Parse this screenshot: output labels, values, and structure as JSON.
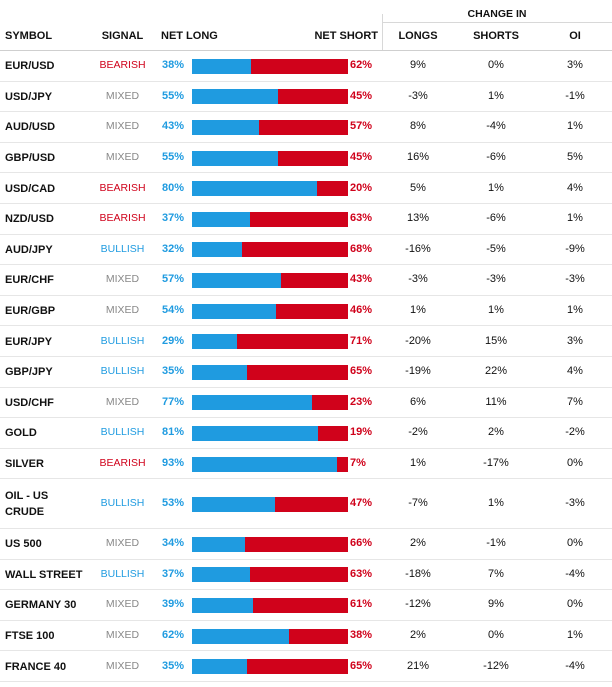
{
  "header": {
    "group_label": "CHANGE IN",
    "symbol": "SYMBOL",
    "signal": "SIGNAL",
    "net_long": "NET LONG",
    "net_short": "NET SHORT",
    "longs": "LONGS",
    "shorts": "SHORTS",
    "oi": "OI"
  },
  "colors": {
    "long": "#1f9be0",
    "short": "#d0021b",
    "mixed": "#888888"
  },
  "rows": [
    {
      "symbol": "EUR/USD",
      "signal": "BEARISH",
      "net_long": 38,
      "net_long_label": "38%",
      "net_short_label": "62%",
      "longs": "9%",
      "shorts": "0%",
      "oi": "3%"
    },
    {
      "symbol": "USD/JPY",
      "signal": "MIXED",
      "net_long": 55,
      "net_long_label": "55%",
      "net_short_label": "45%",
      "longs": "-3%",
      "shorts": "1%",
      "oi": "-1%"
    },
    {
      "symbol": "AUD/USD",
      "signal": "MIXED",
      "net_long": 43,
      "net_long_label": "43%",
      "net_short_label": "57%",
      "longs": "8%",
      "shorts": "-4%",
      "oi": "1%"
    },
    {
      "symbol": "GBP/USD",
      "signal": "MIXED",
      "net_long": 55,
      "net_long_label": "55%",
      "net_short_label": "45%",
      "longs": "16%",
      "shorts": "-6%",
      "oi": "5%"
    },
    {
      "symbol": "USD/CAD",
      "signal": "BEARISH",
      "net_long": 80,
      "net_long_label": "80%",
      "net_short_label": "20%",
      "longs": "5%",
      "shorts": "1%",
      "oi": "4%"
    },
    {
      "symbol": "NZD/USD",
      "signal": "BEARISH",
      "net_long": 37,
      "net_long_label": "37%",
      "net_short_label": "63%",
      "longs": "13%",
      "shorts": "-6%",
      "oi": "1%"
    },
    {
      "symbol": "AUD/JPY",
      "signal": "BULLISH",
      "net_long": 32,
      "net_long_label": "32%",
      "net_short_label": "68%",
      "longs": "-16%",
      "shorts": "-5%",
      "oi": "-9%"
    },
    {
      "symbol": "EUR/CHF",
      "signal": "MIXED",
      "net_long": 57,
      "net_long_label": "57%",
      "net_short_label": "43%",
      "longs": "-3%",
      "shorts": "-3%",
      "oi": "-3%"
    },
    {
      "symbol": "EUR/GBP",
      "signal": "MIXED",
      "net_long": 54,
      "net_long_label": "54%",
      "net_short_label": "46%",
      "longs": "1%",
      "shorts": "1%",
      "oi": "1%"
    },
    {
      "symbol": "EUR/JPY",
      "signal": "BULLISH",
      "net_long": 29,
      "net_long_label": "29%",
      "net_short_label": "71%",
      "longs": "-20%",
      "shorts": "15%",
      "oi": "3%"
    },
    {
      "symbol": "GBP/JPY",
      "signal": "BULLISH",
      "net_long": 35,
      "net_long_label": "35%",
      "net_short_label": "65%",
      "longs": "-19%",
      "shorts": "22%",
      "oi": "4%"
    },
    {
      "symbol": "USD/CHF",
      "signal": "MIXED",
      "net_long": 77,
      "net_long_label": "77%",
      "net_short_label": "23%",
      "longs": "6%",
      "shorts": "11%",
      "oi": "7%"
    },
    {
      "symbol": "GOLD",
      "signal": "BULLISH",
      "net_long": 81,
      "net_long_label": "81%",
      "net_short_label": "19%",
      "longs": "-2%",
      "shorts": "2%",
      "oi": "-2%"
    },
    {
      "symbol": "SILVER",
      "signal": "BEARISH",
      "net_long": 93,
      "net_long_label": "93%",
      "net_short_label": "7%",
      "longs": "1%",
      "shorts": "-17%",
      "oi": "0%"
    },
    {
      "symbol": "OIL - US CRUDE",
      "symbol_line1": "OIL - US",
      "symbol_line2": "CRUDE",
      "signal": "BULLISH",
      "net_long": 53,
      "net_long_label": "53%",
      "net_short_label": "47%",
      "longs": "-7%",
      "shorts": "1%",
      "oi": "-3%"
    },
    {
      "symbol": "US 500",
      "signal": "MIXED",
      "net_long": 34,
      "net_long_label": "34%",
      "net_short_label": "66%",
      "longs": "2%",
      "shorts": "-1%",
      "oi": "0%"
    },
    {
      "symbol": "WALL STREET",
      "signal": "BULLISH",
      "net_long": 37,
      "net_long_label": "37%",
      "net_short_label": "63%",
      "longs": "-18%",
      "shorts": "7%",
      "oi": "-4%"
    },
    {
      "symbol": "GERMANY 30",
      "signal": "MIXED",
      "net_long": 39,
      "net_long_label": "39%",
      "net_short_label": "61%",
      "longs": "-12%",
      "shorts": "9%",
      "oi": "0%"
    },
    {
      "symbol": "FTSE 100",
      "signal": "MIXED",
      "net_long": 62,
      "net_long_label": "62%",
      "net_short_label": "38%",
      "longs": "2%",
      "shorts": "0%",
      "oi": "1%"
    },
    {
      "symbol": "FRANCE 40",
      "signal": "MIXED",
      "net_long": 35,
      "net_long_label": "35%",
      "net_short_label": "65%",
      "longs": "21%",
      "shorts": "-12%",
      "oi": "-4%"
    }
  ]
}
